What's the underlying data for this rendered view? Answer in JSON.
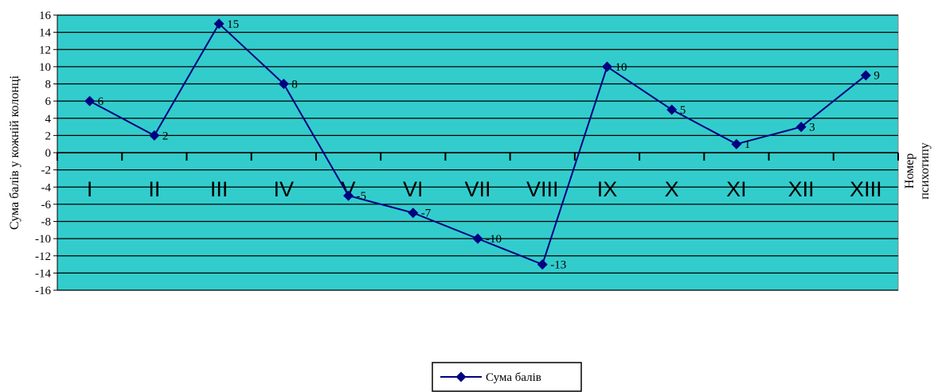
{
  "chart_data": {
    "type": "line",
    "categories": [
      "I",
      "II",
      "III",
      "IV",
      "V",
      "VI",
      "VII",
      "VIII",
      "IX",
      "X",
      "XI",
      "XII",
      "XIII"
    ],
    "series": [
      {
        "name": "Сума балів",
        "values": [
          6,
          2,
          15,
          8,
          -5,
          -7,
          -10,
          -13,
          10,
          5,
          1,
          3,
          9
        ]
      }
    ],
    "ylabel": "Сума балів у кожній колонці",
    "xlabel": [
      "Номер",
      "психотипу"
    ],
    "ylim": [
      -16,
      16
    ],
    "ystep": 2,
    "grid": true,
    "legend_position": "bottom-center",
    "data_labels": true,
    "colors": {
      "plot_bg": "#33CCCC",
      "line": "#000080",
      "marker": "#000080",
      "grid": "#000000"
    }
  }
}
